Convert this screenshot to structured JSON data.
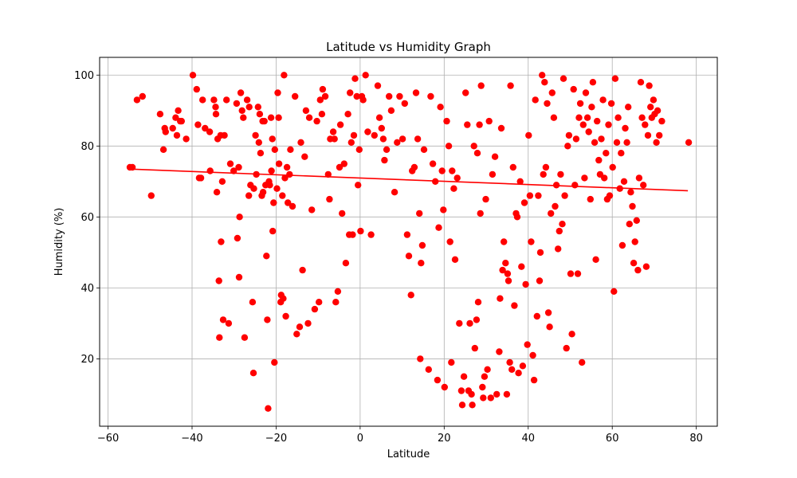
{
  "chart_data": {
    "type": "scatter",
    "title": "Latitude vs Humidity Graph",
    "xlabel": "Latitude",
    "ylabel": "Humidity (%)",
    "xlim": [
      -62,
      85
    ],
    "ylim": [
      1,
      105
    ],
    "xticks": [
      -60,
      -40,
      -20,
      0,
      20,
      40,
      60,
      80
    ],
    "yticks": [
      20,
      40,
      60,
      80,
      100
    ],
    "grid": true,
    "legend": "none",
    "marker_color": "#ff0000",
    "regression": {
      "color": "#ff0000",
      "x": [
        -55,
        78
      ],
      "y": [
        73.5,
        67.4
      ]
    },
    "points": [
      [
        -54.8,
        74
      ],
      [
        -54.2,
        74
      ],
      [
        -53.1,
        93
      ],
      [
        -51.8,
        94
      ],
      [
        -49.7,
        66
      ],
      [
        -47.6,
        89
      ],
      [
        -46.8,
        79
      ],
      [
        -46.5,
        85
      ],
      [
        -46.3,
        84
      ],
      [
        -44.6,
        85
      ],
      [
        -43.9,
        88
      ],
      [
        -43.6,
        83
      ],
      [
        -43.3,
        90
      ],
      [
        -42.8,
        87
      ],
      [
        -42.5,
        87
      ],
      [
        -41.4,
        82
      ],
      [
        -39.8,
        100
      ],
      [
        -38.9,
        96
      ],
      [
        -38.6,
        86
      ],
      [
        -38.3,
        71
      ],
      [
        -37.9,
        71
      ],
      [
        -37.5,
        93
      ],
      [
        -36.9,
        85
      ],
      [
        -35.8,
        84
      ],
      [
        -35.7,
        73
      ],
      [
        -34.8,
        93
      ],
      [
        -34.4,
        91
      ],
      [
        -34.3,
        89
      ],
      [
        -34.1,
        67
      ],
      [
        -33.9,
        82
      ],
      [
        -33.6,
        42
      ],
      [
        -33.5,
        26
      ],
      [
        -33.2,
        83
      ],
      [
        -33.1,
        53
      ],
      [
        -32.8,
        70
      ],
      [
        -32.6,
        31
      ],
      [
        -32.3,
        83
      ],
      [
        -31.8,
        93
      ],
      [
        -31.3,
        30
      ],
      [
        -30.9,
        75
      ],
      [
        -30.1,
        73
      ],
      [
        -29.4,
        92
      ],
      [
        -29.2,
        54
      ],
      [
        -28.9,
        74
      ],
      [
        -28.8,
        43
      ],
      [
        -28.7,
        60
      ],
      [
        -28.4,
        95
      ],
      [
        -28.1,
        90
      ],
      [
        -27.8,
        88
      ],
      [
        -27.5,
        26
      ],
      [
        -26.9,
        93
      ],
      [
        -26.5,
        66
      ],
      [
        -26.4,
        91
      ],
      [
        -26.1,
        69
      ],
      [
        -25.6,
        36
      ],
      [
        -25.4,
        16
      ],
      [
        -25.3,
        68
      ],
      [
        -24.9,
        83
      ],
      [
        -24.7,
        72
      ],
      [
        -24.3,
        91
      ],
      [
        -24.1,
        81
      ],
      [
        -23.9,
        89
      ],
      [
        -23.7,
        78
      ],
      [
        -23.4,
        66
      ],
      [
        -23.2,
        87
      ],
      [
        -23.1,
        67
      ],
      [
        -22.8,
        87
      ],
      [
        -22.5,
        69
      ],
      [
        -22.3,
        49
      ],
      [
        -22.1,
        31
      ],
      [
        -21.9,
        6
      ],
      [
        -21.7,
        70
      ],
      [
        -21.5,
        69
      ],
      [
        -21.2,
        88
      ],
      [
        -21.1,
        73
      ],
      [
        -20.9,
        82
      ],
      [
        -20.8,
        56
      ],
      [
        -20.6,
        64
      ],
      [
        -20.4,
        19
      ],
      [
        -20.3,
        79
      ],
      [
        -19.8,
        68
      ],
      [
        -19.6,
        95
      ],
      [
        -19.4,
        88
      ],
      [
        -19.3,
        75
      ],
      [
        -18.9,
        36
      ],
      [
        -18.8,
        38
      ],
      [
        -18.5,
        66
      ],
      [
        -18.3,
        37
      ],
      [
        -18.1,
        100
      ],
      [
        -17.9,
        71
      ],
      [
        -17.7,
        32
      ],
      [
        -17.4,
        74
      ],
      [
        -17.2,
        64
      ],
      [
        -16.8,
        72
      ],
      [
        -16.6,
        79
      ],
      [
        -16.1,
        63
      ],
      [
        -15.5,
        94
      ],
      [
        -15.1,
        27
      ],
      [
        -14.4,
        29
      ],
      [
        -14.1,
        81
      ],
      [
        -13.7,
        45
      ],
      [
        -13.2,
        77
      ],
      [
        -12.9,
        90
      ],
      [
        -12.4,
        30
      ],
      [
        -12.1,
        88
      ],
      [
        -11.5,
        62
      ],
      [
        -10.8,
        34
      ],
      [
        -10.3,
        87
      ],
      [
        -9.8,
        36
      ],
      [
        -9.5,
        93
      ],
      [
        -9.1,
        89
      ],
      [
        -8.9,
        96
      ],
      [
        -8.3,
        94
      ],
      [
        -7.6,
        72
      ],
      [
        -7.3,
        65
      ],
      [
        -7.1,
        82
      ],
      [
        -6.4,
        84
      ],
      [
        -6.1,
        82
      ],
      [
        -5.8,
        36
      ],
      [
        -5.3,
        39
      ],
      [
        -4.9,
        74
      ],
      [
        -4.7,
        86
      ],
      [
        -4.3,
        61
      ],
      [
        -3.8,
        75
      ],
      [
        -3.4,
        47
      ],
      [
        -2.9,
        89
      ],
      [
        -2.6,
        55
      ],
      [
        -2.4,
        95
      ],
      [
        -2.1,
        81
      ],
      [
        -1.8,
        55
      ],
      [
        -1.5,
        83
      ],
      [
        -1.2,
        99
      ],
      [
        -0.8,
        94
      ],
      [
        -0.5,
        69
      ],
      [
        -0.2,
        79
      ],
      [
        0.1,
        56
      ],
      [
        0.4,
        94
      ],
      [
        0.7,
        93
      ],
      [
        1.3,
        100
      ],
      [
        1.8,
        84
      ],
      [
        2.6,
        55
      ],
      [
        3.4,
        83
      ],
      [
        4.2,
        97
      ],
      [
        4.6,
        88
      ],
      [
        5.1,
        85
      ],
      [
        5.5,
        82
      ],
      [
        5.8,
        76
      ],
      [
        6.3,
        79
      ],
      [
        6.9,
        94
      ],
      [
        7.4,
        90
      ],
      [
        8.2,
        67
      ],
      [
        8.8,
        81
      ],
      [
        9.4,
        94
      ],
      [
        10.1,
        82
      ],
      [
        10.6,
        92
      ],
      [
        11.2,
        55
      ],
      [
        11.6,
        49
      ],
      [
        12.1,
        38
      ],
      [
        12.4,
        73
      ],
      [
        12.9,
        74
      ],
      [
        13.3,
        95
      ],
      [
        13.7,
        82
      ],
      [
        14.1,
        61
      ],
      [
        14.3,
        20
      ],
      [
        14.5,
        47
      ],
      [
        14.8,
        52
      ],
      [
        15.2,
        79
      ],
      [
        16.3,
        17
      ],
      [
        16.8,
        94
      ],
      [
        17.3,
        75
      ],
      [
        17.9,
        70
      ],
      [
        18.4,
        14
      ],
      [
        18.7,
        57
      ],
      [
        19.1,
        91
      ],
      [
        19.5,
        73
      ],
      [
        19.8,
        62
      ],
      [
        20.1,
        12
      ],
      [
        20.6,
        87
      ],
      [
        21.1,
        80
      ],
      [
        21.4,
        53
      ],
      [
        21.7,
        19
      ],
      [
        21.9,
        73
      ],
      [
        22.3,
        68
      ],
      [
        22.6,
        48
      ],
      [
        23.1,
        71
      ],
      [
        23.6,
        30
      ],
      [
        24.1,
        11
      ],
      [
        24.3,
        7
      ],
      [
        24.7,
        15
      ],
      [
        25.1,
        95
      ],
      [
        25.5,
        86
      ],
      [
        25.8,
        11
      ],
      [
        26.1,
        30
      ],
      [
        26.5,
        10
      ],
      [
        26.7,
        7
      ],
      [
        27.1,
        80
      ],
      [
        27.3,
        23
      ],
      [
        27.7,
        31
      ],
      [
        27.9,
        78
      ],
      [
        28.1,
        36
      ],
      [
        28.4,
        86
      ],
      [
        28.6,
        61
      ],
      [
        28.8,
        97
      ],
      [
        29.1,
        12
      ],
      [
        29.3,
        9
      ],
      [
        29.6,
        15
      ],
      [
        29.9,
        65
      ],
      [
        30.3,
        17
      ],
      [
        30.7,
        87
      ],
      [
        31.1,
        9
      ],
      [
        31.5,
        72
      ],
      [
        32.1,
        77
      ],
      [
        32.5,
        10
      ],
      [
        33.1,
        22
      ],
      [
        33.3,
        37
      ],
      [
        33.6,
        85
      ],
      [
        33.9,
        45
      ],
      [
        34.2,
        53
      ],
      [
        34.6,
        47
      ],
      [
        34.9,
        10
      ],
      [
        35.1,
        44
      ],
      [
        35.3,
        42
      ],
      [
        35.6,
        19
      ],
      [
        35.8,
        97
      ],
      [
        36.1,
        17
      ],
      [
        36.4,
        74
      ],
      [
        36.7,
        35
      ],
      [
        37.1,
        61
      ],
      [
        37.4,
        60
      ],
      [
        37.7,
        16
      ],
      [
        38.1,
        70
      ],
      [
        38.4,
        46
      ],
      [
        38.7,
        18
      ],
      [
        39.1,
        64
      ],
      [
        39.4,
        41
      ],
      [
        39.8,
        24
      ],
      [
        40.1,
        83
      ],
      [
        40.4,
        66
      ],
      [
        40.7,
        53
      ],
      [
        41.1,
        21
      ],
      [
        41.4,
        14
      ],
      [
        41.7,
        93
      ],
      [
        42.1,
        32
      ],
      [
        42.4,
        66
      ],
      [
        42.7,
        42
      ],
      [
        42.9,
        50
      ],
      [
        43.3,
        100
      ],
      [
        43.6,
        72
      ],
      [
        43.9,
        98
      ],
      [
        44.2,
        74
      ],
      [
        44.5,
        92
      ],
      [
        44.8,
        33
      ],
      [
        45.1,
        29
      ],
      [
        45.4,
        61
      ],
      [
        45.7,
        95
      ],
      [
        46.1,
        88
      ],
      [
        46.4,
        63
      ],
      [
        46.7,
        69
      ],
      [
        47.1,
        51
      ],
      [
        47.4,
        56
      ],
      [
        47.7,
        72
      ],
      [
        48.1,
        58
      ],
      [
        48.4,
        99
      ],
      [
        48.7,
        66
      ],
      [
        49.1,
        23
      ],
      [
        49.4,
        80
      ],
      [
        49.7,
        83
      ],
      [
        50.1,
        44
      ],
      [
        50.4,
        27
      ],
      [
        50.8,
        96
      ],
      [
        51.1,
        69
      ],
      [
        51.4,
        82
      ],
      [
        51.8,
        44
      ],
      [
        52.1,
        88
      ],
      [
        52.4,
        92
      ],
      [
        52.8,
        19
      ],
      [
        53.1,
        86
      ],
      [
        53.4,
        71
      ],
      [
        53.7,
        95
      ],
      [
        54.1,
        88
      ],
      [
        54.4,
        84
      ],
      [
        54.8,
        65
      ],
      [
        55.1,
        91
      ],
      [
        55.4,
        98
      ],
      [
        55.8,
        81
      ],
      [
        56.1,
        48
      ],
      [
        56.4,
        87
      ],
      [
        56.8,
        76
      ],
      [
        57.1,
        72
      ],
      [
        57.4,
        82
      ],
      [
        57.8,
        93
      ],
      [
        58.1,
        71
      ],
      [
        58.5,
        78
      ],
      [
        58.8,
        65
      ],
      [
        59.1,
        86
      ],
      [
        59.4,
        66
      ],
      [
        59.8,
        92
      ],
      [
        60.1,
        74
      ],
      [
        60.4,
        39
      ],
      [
        60.7,
        99
      ],
      [
        61.1,
        81
      ],
      [
        61.4,
        88
      ],
      [
        61.8,
        68
      ],
      [
        62.1,
        78
      ],
      [
        62.4,
        52
      ],
      [
        62.8,
        70
      ],
      [
        63.1,
        85
      ],
      [
        63.5,
        81
      ],
      [
        63.8,
        91
      ],
      [
        64.1,
        58
      ],
      [
        64.4,
        67
      ],
      [
        64.8,
        63
      ],
      [
        65.1,
        47
      ],
      [
        65.4,
        53
      ],
      [
        65.8,
        59
      ],
      [
        66.1,
        45
      ],
      [
        66.4,
        71
      ],
      [
        66.8,
        98
      ],
      [
        67.1,
        88
      ],
      [
        67.4,
        69
      ],
      [
        67.8,
        86
      ],
      [
        68.1,
        46
      ],
      [
        68.5,
        83
      ],
      [
        68.8,
        97
      ],
      [
        69.1,
        91
      ],
      [
        69.4,
        88
      ],
      [
        69.8,
        93
      ],
      [
        70.1,
        89
      ],
      [
        70.5,
        81
      ],
      [
        70.8,
        90
      ],
      [
        71.2,
        83
      ],
      [
        71.8,
        87
      ],
      [
        78.2,
        81
      ]
    ]
  }
}
